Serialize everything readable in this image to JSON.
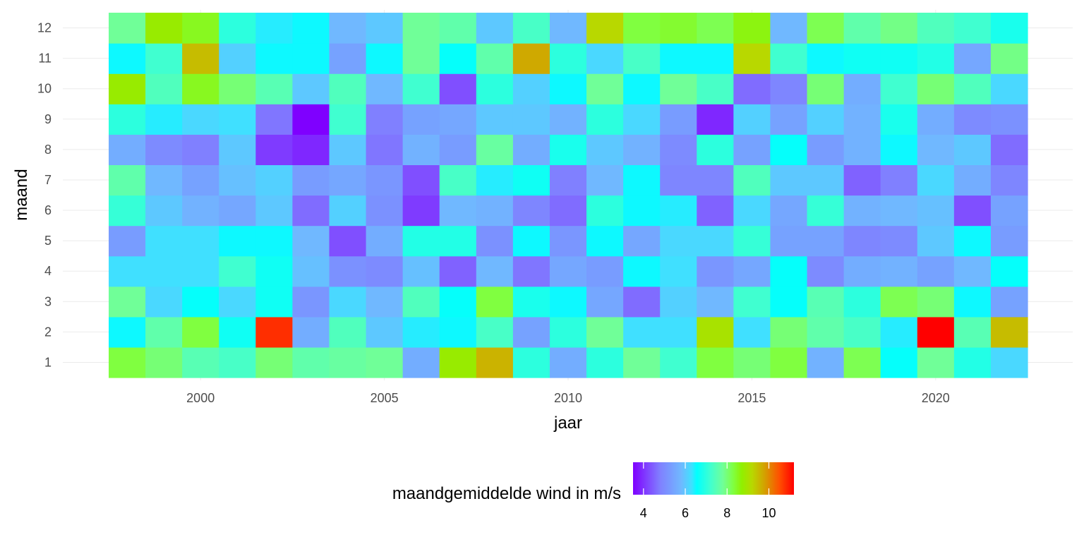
{
  "chart_data": {
    "type": "heatmap",
    "title": "",
    "xlabel": "jaar",
    "ylabel": "maand",
    "x": [
      1998,
      1999,
      2000,
      2001,
      2002,
      2003,
      2004,
      2005,
      2006,
      2007,
      2008,
      2009,
      2010,
      2011,
      2012,
      2013,
      2014,
      2015,
      2016,
      2017,
      2018,
      2019,
      2020,
      2021,
      2022
    ],
    "y": [
      1,
      2,
      3,
      4,
      5,
      6,
      7,
      8,
      9,
      10,
      11,
      12
    ],
    "x_ticks": [
      2000,
      2005,
      2010,
      2015,
      2020
    ],
    "y_ticks": [
      1,
      2,
      3,
      4,
      5,
      6,
      7,
      8,
      9,
      10,
      11,
      12
    ],
    "xlim": [
      1997.5,
      2022.5
    ],
    "ylim": [
      0.5,
      12.5
    ],
    "values_by_month": {
      "1": [
        8.3,
        8.0,
        7.5,
        7.3,
        8.0,
        7.6,
        7.7,
        7.8,
        5.6,
        8.8,
        9.6,
        7.0,
        5.6,
        7.0,
        7.8,
        7.2,
        8.3,
        8.0,
        8.3,
        5.7,
        8.2,
        6.6,
        7.8,
        6.9,
        6.2
      ],
      "2": [
        6.5,
        7.6,
        8.3,
        6.7,
        10.8,
        5.6,
        7.4,
        6.0,
        6.4,
        6.5,
        7.3,
        5.4,
        7.0,
        7.8,
        6.3,
        6.3,
        9.0,
        6.3,
        8.0,
        7.6,
        7.3,
        6.4,
        11.2,
        7.5,
        9.5
      ],
      "3": [
        7.8,
        6.2,
        6.6,
        6.2,
        6.7,
        5.2,
        6.2,
        5.8,
        7.4,
        6.6,
        8.3,
        6.8,
        6.5,
        5.5,
        4.6,
        6.1,
        5.8,
        7.2,
        6.6,
        7.5,
        7.0,
        8.2,
        8.0,
        6.5,
        5.4
      ],
      "4": [
        6.3,
        6.3,
        6.3,
        7.2,
        6.7,
        5.9,
        5.1,
        5.0,
        5.9,
        4.5,
        5.8,
        4.7,
        5.5,
        5.3,
        6.5,
        6.3,
        5.2,
        5.5,
        6.6,
        5.0,
        5.6,
        5.7,
        5.4,
        5.8,
        6.6
      ],
      "5": [
        5.3,
        6.3,
        6.3,
        6.5,
        6.5,
        5.8,
        4.3,
        5.6,
        6.9,
        6.9,
        5.1,
        6.5,
        5.2,
        6.5,
        5.5,
        6.2,
        6.2,
        7.1,
        5.4,
        5.4,
        4.9,
        5.0,
        6.0,
        6.5,
        5.3
      ],
      "6": [
        7.1,
        6.0,
        5.7,
        5.5,
        6.0,
        4.6,
        6.1,
        5.1,
        4.1,
        5.8,
        5.7,
        4.9,
        4.6,
        7.0,
        6.5,
        6.4,
        4.5,
        6.2,
        5.5,
        7.1,
        5.7,
        5.8,
        5.9,
        4.3,
        5.4
      ],
      "7": [
        7.6,
        5.8,
        5.4,
        5.9,
        6.1,
        5.3,
        5.5,
        5.2,
        4.3,
        7.3,
        6.4,
        6.7,
        4.8,
        5.8,
        6.5,
        4.9,
        4.9,
        7.4,
        6.0,
        6.0,
        4.5,
        4.8,
        6.2,
        5.6,
        4.9
      ],
      "8": [
        5.6,
        5.0,
        4.8,
        6.0,
        4.1,
        3.9,
        6.0,
        4.7,
        5.7,
        5.3,
        7.7,
        5.6,
        6.8,
        6.0,
        5.7,
        5.0,
        7.0,
        5.4,
        6.6,
        5.3,
        5.7,
        6.5,
        5.8,
        6.0,
        4.6
      ],
      "9": [
        7.0,
        6.4,
        6.2,
        6.3,
        4.7,
        3.5,
        7.2,
        4.8,
        5.4,
        5.5,
        6.0,
        6.0,
        5.7,
        7.0,
        6.2,
        5.3,
        3.9,
        6.1,
        5.4,
        6.1,
        5.7,
        6.8,
        5.6,
        5.0,
        5.1
      ],
      "10": [
        8.8,
        7.4,
        8.5,
        8.0,
        7.5,
        6.0,
        7.4,
        5.8,
        7.2,
        4.3,
        7.0,
        6.1,
        6.5,
        7.8,
        6.5,
        7.8,
        7.3,
        4.6,
        4.9,
        8.0,
        5.6,
        7.2,
        8.0,
        7.4,
        6.2
      ],
      "11": [
        6.5,
        7.2,
        9.5,
        6.1,
        6.5,
        6.5,
        5.4,
        6.5,
        7.8,
        6.6,
        7.6,
        9.7,
        7.0,
        6.2,
        7.3,
        6.5,
        6.5,
        9.2,
        7.2,
        6.5,
        6.7,
        6.7,
        6.9,
        5.5,
        7.9
      ],
      "12": [
        7.8,
        8.8,
        8.5,
        7.0,
        6.4,
        6.5,
        5.8,
        6.0,
        7.8,
        7.6,
        6.0,
        7.3,
        5.8,
        9.2,
        8.3,
        8.4,
        8.2,
        8.6,
        5.8,
        8.2,
        7.6,
        7.9,
        7.4,
        7.2,
        6.8
      ]
    },
    "legend": {
      "title": "maandgemiddelde wind in m/s",
      "ticks": [
        4,
        6,
        8,
        10
      ],
      "range": [
        3.5,
        11.2
      ],
      "placement": "bottom"
    },
    "color_scale": [
      {
        "value": 3.5,
        "color": "#7f00ff"
      },
      {
        "value": 4.8,
        "color": "#8080ff"
      },
      {
        "value": 5.8,
        "color": "#70b8ff"
      },
      {
        "value": 6.3,
        "color": "#40e0ff"
      },
      {
        "value": 6.55,
        "color": "#00ffff"
      },
      {
        "value": 7.2,
        "color": "#40ffd0"
      },
      {
        "value": 7.8,
        "color": "#70ff98"
      },
      {
        "value": 8.3,
        "color": "#80ff40"
      },
      {
        "value": 8.7,
        "color": "#90f000"
      },
      {
        "value": 9.2,
        "color": "#b8d800"
      },
      {
        "value": 9.8,
        "color": "#d4a000"
      },
      {
        "value": 10.5,
        "color": "#ff5000"
      },
      {
        "value": 11.2,
        "color": "#ff0000"
      }
    ]
  }
}
